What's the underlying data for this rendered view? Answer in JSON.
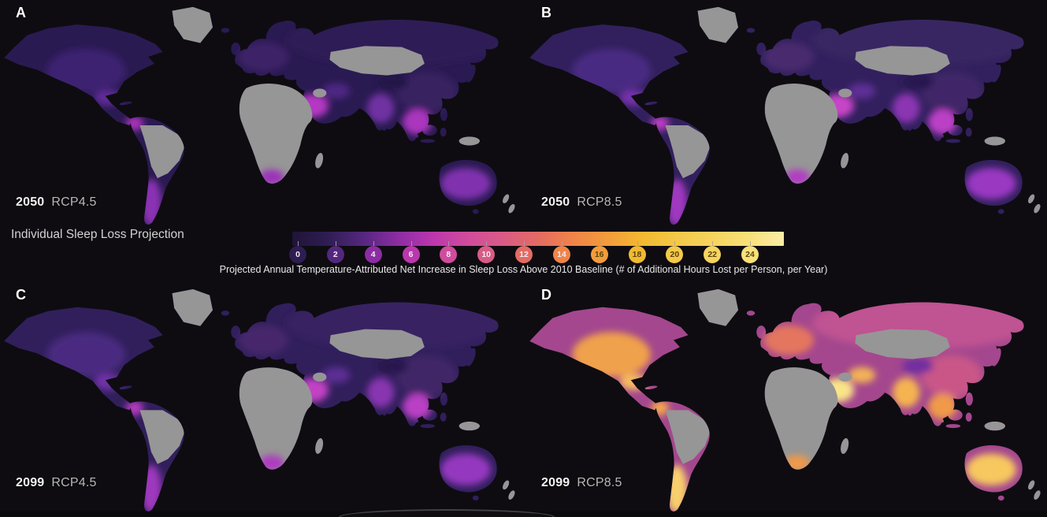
{
  "figure": {
    "background": "#0e0c11",
    "ocean_color": "#0e0c11"
  },
  "legend": {
    "title": "Individual Sleep Loss Projection",
    "caption": "Projected Annual Temperature-Attributed Net Increase in Sleep Loss Above 2010 Baseline (# of Additional Hours Lost per Person, per Year)",
    "tick_values": [
      0,
      2,
      4,
      6,
      8,
      10,
      12,
      14,
      16,
      18,
      20,
      22,
      24
    ],
    "tick_colors": [
      "#2e1d52",
      "#54277f",
      "#8b2da2",
      "#bb37ad",
      "#cf4c9c",
      "#d95b86",
      "#e36b63",
      "#ef8449",
      "#f29c3b",
      "#f2ba31",
      "#f4c94a",
      "#f6d45f",
      "#f8e07a"
    ],
    "bar_gradient": [
      "#201439",
      "#2e1d52",
      "#54277f",
      "#8b2da2",
      "#bb37ad",
      "#cf4c9c",
      "#d95b86",
      "#e36b63",
      "#ef8449",
      "#f29c3b",
      "#f2ba31",
      "#f4c94a",
      "#f6d45f",
      "#f8e07a",
      "#fbeda6"
    ],
    "dark_text_from": 16,
    "chip_text_light": "#f3e9f3",
    "chip_text_dark": "#5a430e",
    "tick_mark_color": "#a3a3a3"
  },
  "map": {
    "nodata_color": "#969696"
  },
  "panels": [
    {
      "label": "A",
      "year": "2050",
      "scenario": "RCP4.5",
      "regions": {
        "base": "#2a1a52",
        "russia": "#2e1c56",
        "us": "#3c2472",
        "mexico": "#5e2c96",
        "europe": "#3c2268",
        "iran": "#4e2884",
        "china": "#372160",
        "tibet": "#221546",
        "saudi": "#b437c2",
        "india": "#7030a2",
        "seasia": "#aa36be",
        "colombia": "#a832ba",
        "southern_cone": "#8a33b4",
        "australia": "#8031ae",
        "south_africa": "#9c33ba"
      }
    },
    {
      "label": "B",
      "year": "2050",
      "scenario": "RCP8.5",
      "regions": {
        "base": "#32205e",
        "russia": "#382562",
        "us": "#4a2b82",
        "mexico": "#7433aa",
        "europe": "#48296e",
        "iran": "#5e2f96",
        "china": "#412768",
        "tibet": "#271950",
        "saudi": "#c644c6",
        "india": "#8b35b2",
        "seasia": "#bc41c6",
        "colombia": "#b93cc0",
        "southern_cone": "#a039c0",
        "australia": "#9a39c2",
        "south_africa": "#b03cc2"
      }
    },
    {
      "label": "C",
      "year": "2099",
      "scenario": "RCP4.5",
      "regions": {
        "base": "#311f5c",
        "russia": "#372462",
        "us": "#482a80",
        "mexico": "#7132a8",
        "europe": "#46286c",
        "iran": "#5c2e94",
        "china": "#3f2666",
        "tibet": "#26184e",
        "saudi": "#c242c4",
        "india": "#8834b0",
        "seasia": "#b93fc4",
        "colombia": "#b63bbe",
        "southern_cone": "#9e38be",
        "australia": "#9537c0",
        "south_africa": "#ae3bc0"
      }
    },
    {
      "label": "D",
      "year": "2099",
      "scenario": "RCP8.5",
      "regions": {
        "base": "#a4478e",
        "russia": "#c05292",
        "us": "#f0a14b",
        "mexico": "#f6bb60",
        "europe": "#e4765f",
        "iran": "#f2b357",
        "china": "#c95787",
        "tibet": "#6f2da0",
        "saudi": "#fae488",
        "india": "#f5b451",
        "seasia": "#f09a4a",
        "colombia": "#f2a54e",
        "southern_cone": "#f8d06c",
        "australia": "#f7c85e",
        "south_africa": "#ef9a49"
      }
    }
  ]
}
